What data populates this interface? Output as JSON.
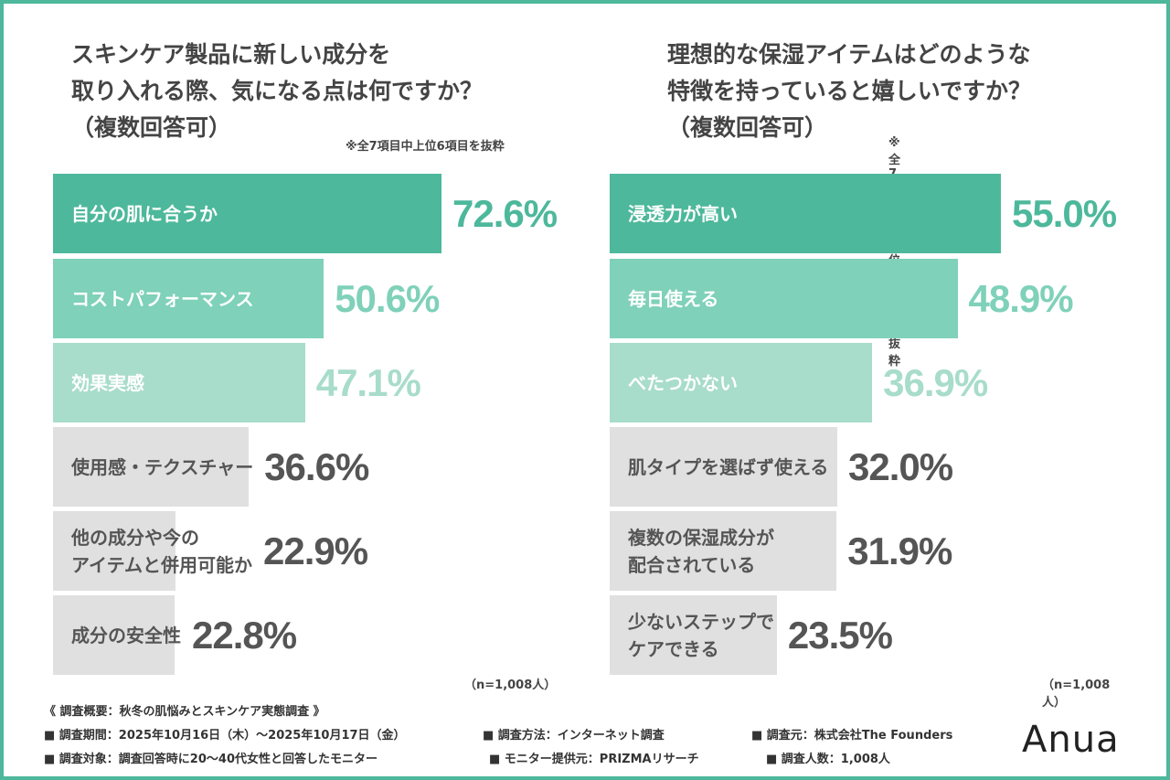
{
  "colors": {
    "frame": "#4db89b",
    "rank1": "#4db89b",
    "rank2": "#7fd1b9",
    "rank3": "#a8dccb",
    "other": "#e0e0e0",
    "other_text": "#555555"
  },
  "chart_data": [
    {
      "type": "bar",
      "orientation": "horizontal",
      "title": "スキンケア製品に新しい成分を\n取り入れる際、気になる点は何ですか？\n（複数回答可）",
      "note": "※全7項目中上位6項目を抜粋",
      "sample": "（n=1,008人）",
      "categories": [
        "自分の肌に合うか",
        "コストパフォーマンス",
        "効果実感",
        "使用感・テクスチャー",
        "他の成分や今の\nアイテムと併用可能か",
        "成分の安全性"
      ],
      "values": [
        72.6,
        50.6,
        47.1,
        36.6,
        22.9,
        22.8
      ],
      "labels": [
        "72.6%",
        "50.6%",
        "47.1%",
        "36.6%",
        "22.9%",
        "22.8%"
      ]
    },
    {
      "type": "bar",
      "orientation": "horizontal",
      "title": "理想的な保湿アイテムはどのような\n特徴を持っていると嬉しいですか？\n（複数回答可）",
      "note": "※全7項目中上位6項目を抜粋",
      "sample": "（n=1,008人）",
      "categories": [
        "浸透力が高い",
        "毎日使える",
        "べたつかない",
        "肌タイプを選ばず使える",
        "複数の保湿成分が\n配合されている",
        "少ないステップで\nケアできる"
      ],
      "values": [
        55.0,
        48.9,
        36.9,
        32.0,
        31.9,
        23.5
      ],
      "labels": [
        "55.0%",
        "48.9%",
        "36.9%",
        "32.0%",
        "31.9%",
        "23.5%"
      ]
    }
  ],
  "footer": {
    "overview": "《 調査概要：秋冬の肌悩みとスキンケア実態調査 》",
    "period": "■ 調査期間：2025年10月16日（木）～2025年10月17日（金）",
    "method": "■ 調査方法：インターネット調査",
    "source": "■ 調査元：株式会社The Founders",
    "target": "■ 調査対象：調査回答時に20～40代女性と回答したモニター",
    "provider": "■ モニター提供元：PRIZMAリサーチ",
    "count": "■ 調査人数：1,008人"
  },
  "logo": "Anua"
}
